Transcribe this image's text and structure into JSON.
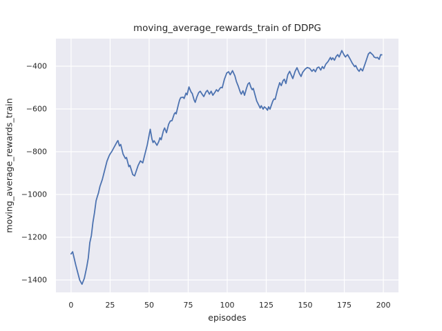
{
  "chart_data": {
    "type": "line",
    "title": "moving_average_rewards_train of DDPG",
    "xlabel": "episodes",
    "ylabel": "moving_average_rewards_train",
    "legend": null,
    "grid": true,
    "xlim": [
      -9.7,
      209.7
    ],
    "ylim": [
      -1458,
      -271
    ],
    "x_ticks": [
      0,
      25,
      50,
      75,
      100,
      125,
      150,
      175,
      200
    ],
    "x_tick_labels": [
      "0",
      "25",
      "50",
      "75",
      "100",
      "125",
      "150",
      "175",
      "200"
    ],
    "y_ticks": [
      -400,
      -600,
      -800,
      -1000,
      -1200,
      -1400
    ],
    "y_tick_labels": [
      "−400",
      "−600",
      "−800",
      "−1000",
      "−1200",
      "−1400"
    ],
    "colors": {
      "line": "#4c72b0",
      "plot_background": "#eaeaf2",
      "grid": "#ffffff",
      "figure_background": "#ffffff",
      "text": "#262626"
    },
    "series": [
      {
        "name": "moving_average_rewards_train",
        "x": [
          0,
          1,
          3,
          4.5,
          5.5,
          7,
          8.5,
          10,
          11,
          12,
          13,
          14,
          15,
          16,
          17,
          17.5,
          18.5,
          20,
          21.5,
          23,
          24.5,
          25.2,
          26,
          29.5,
          30,
          31,
          31.8,
          33.3,
          34.8,
          35.5,
          37,
          37.7,
          39.5,
          40.7,
          42.9,
          44.4,
          45.9,
          47.3,
          48.8,
          50.7,
          51.8,
          52.5,
          53.2,
          55,
          56.2,
          56.9,
          57.7,
          59.1,
          59.9,
          61.1,
          62.5,
          63.6,
          64.6,
          66.1,
          66.8,
          67.3,
          68.7,
          69.5,
          70.2,
          71.7,
          72.4,
          73.6,
          74.3,
          75.5,
          76.8,
          77.6,
          78.8,
          79.5,
          80.5,
          81.7,
          82.7,
          84.2,
          85,
          86.4,
          87.3,
          88.6,
          89.7,
          90.8,
          92.3,
          93.1,
          94.1,
          95.3,
          96,
          96.8,
          98.2,
          99.7,
          100.9,
          101.9,
          103.4,
          104.9,
          105.9,
          107.1,
          108.3,
          109,
          110.1,
          111.1,
          112.3,
          113.3,
          114.2,
          115.2,
          116,
          116.7,
          118.1,
          118.9,
          120.4,
          121.1,
          121.8,
          123,
          123.8,
          124.8,
          125.8,
          126.5,
          127.4,
          129.2,
          130,
          130.7,
          132.2,
          132.9,
          133.6,
          134.6,
          135.8,
          136.6,
          137.6,
          138.8,
          140,
          142,
          143.5,
          144.7,
          146.2,
          147.3,
          148.3,
          150,
          151.3,
          152.8,
          154.3,
          155.4,
          156.5,
          157.7,
          158.7,
          159.9,
          160.9,
          161.9,
          163.1,
          164.6,
          166.1,
          166.8,
          167.6,
          168.7,
          169.8,
          170.8,
          171.7,
          173.4,
          174.9,
          175.7,
          176.4,
          177.1,
          178.6,
          180.1,
          181.6,
          182.3,
          183.5,
          184.5,
          185.5,
          186.7,
          188.2,
          189.4,
          190.4,
          191.5,
          193.4,
          194.1,
          195.3,
          196.3,
          197.3,
          198.3,
          199
        ],
        "y": [
          -1278,
          -1268,
          -1330,
          -1372,
          -1400,
          -1420,
          -1392,
          -1340,
          -1298,
          -1225,
          -1192,
          -1130,
          -1085,
          -1030,
          -1005,
          -994,
          -962,
          -930,
          -887,
          -844,
          -817,
          -808,
          -800,
          -753,
          -748,
          -773,
          -766,
          -811,
          -832,
          -827,
          -870,
          -864,
          -907,
          -913,
          -865,
          -843,
          -852,
          -811,
          -768,
          -695,
          -741,
          -757,
          -749,
          -770,
          -752,
          -735,
          -744,
          -703,
          -689,
          -711,
          -671,
          -656,
          -655,
          -623,
          -617,
          -623,
          -580,
          -558,
          -547,
          -545,
          -551,
          -526,
          -534,
          -497,
          -520,
          -528,
          -558,
          -569,
          -545,
          -524,
          -517,
          -534,
          -542,
          -520,
          -513,
          -531,
          -517,
          -536,
          -520,
          -510,
          -518,
          -504,
          -499,
          -501,
          -461,
          -432,
          -426,
          -440,
          -421,
          -445,
          -472,
          -494,
          -520,
          -531,
          -515,
          -536,
          -504,
          -483,
          -477,
          -499,
          -510,
          -504,
          -542,
          -563,
          -585,
          -596,
          -585,
          -601,
          -590,
          -596,
          -606,
          -590,
          -601,
          -563,
          -553,
          -555,
          -510,
          -494,
          -477,
          -491,
          -467,
          -461,
          -481,
          -440,
          -424,
          -458,
          -424,
          -407,
          -434,
          -448,
          -429,
          -413,
          -406,
          -410,
          -424,
          -415,
          -426,
          -407,
          -404,
          -418,
          -402,
          -411,
          -391,
          -378,
          -359,
          -370,
          -361,
          -372,
          -354,
          -346,
          -357,
          -327,
          -348,
          -357,
          -351,
          -346,
          -365,
          -386,
          -402,
          -397,
          -415,
          -424,
          -411,
          -422,
          -391,
          -365,
          -343,
          -335,
          -348,
          -357,
          -361,
          -359,
          -368,
          -346,
          -347
        ]
      }
    ]
  }
}
